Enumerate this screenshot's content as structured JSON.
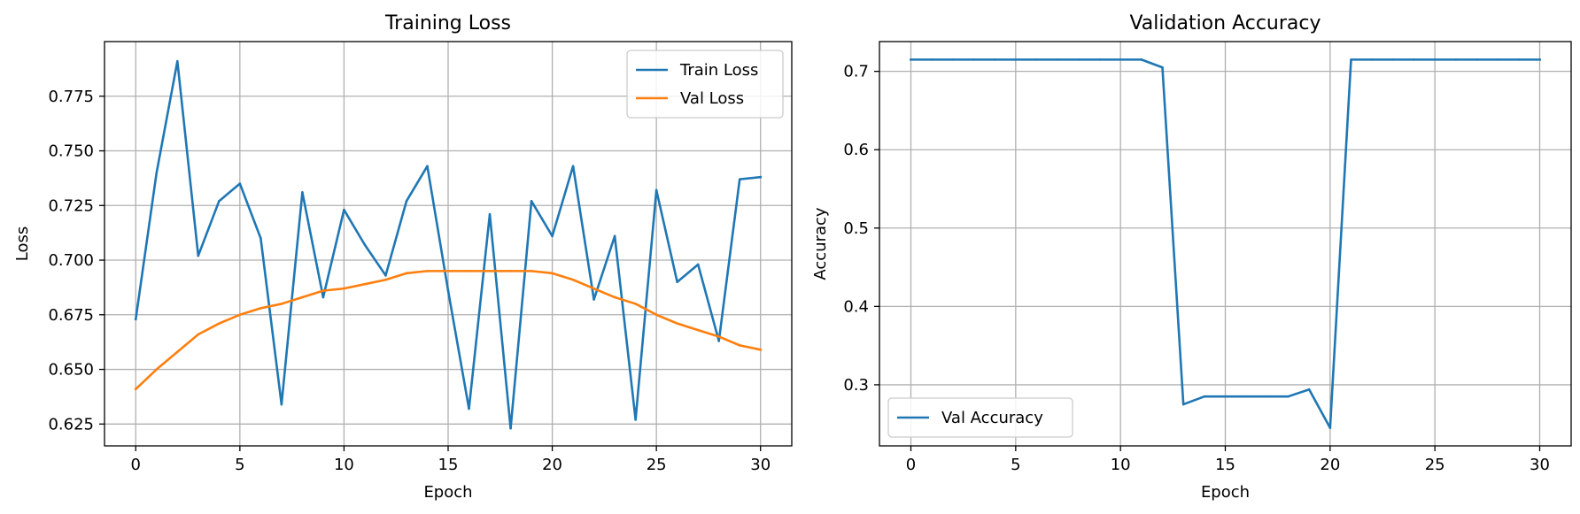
{
  "chart_data": [
    {
      "type": "line",
      "title": "Training Loss",
      "xlabel": "Epoch",
      "ylabel": "Loss",
      "xlim": [
        -1.5,
        31.5
      ],
      "ylim": [
        0.615,
        0.8
      ],
      "xticks": [
        0,
        5,
        10,
        15,
        20,
        25,
        30
      ],
      "yticks": [
        0.625,
        0.65,
        0.675,
        0.7,
        0.725,
        0.75,
        0.775
      ],
      "ytick_labels": [
        "0.625",
        "0.650",
        "0.675",
        "0.700",
        "0.725",
        "0.750",
        "0.775"
      ],
      "grid": true,
      "legend": "upper right",
      "x": [
        0,
        1,
        2,
        3,
        4,
        5,
        6,
        7,
        8,
        9,
        10,
        11,
        12,
        13,
        14,
        15,
        16,
        17,
        18,
        19,
        20,
        21,
        22,
        23,
        24,
        25,
        26,
        27,
        28,
        29,
        30
      ],
      "series": [
        {
          "name": "Train Loss",
          "color": "#1f77b4",
          "values": [
            0.673,
            0.74,
            0.791,
            0.702,
            0.727,
            0.735,
            0.71,
            0.634,
            0.731,
            0.683,
            0.723,
            0.707,
            0.693,
            0.727,
            0.743,
            0.686,
            0.632,
            0.721,
            0.623,
            0.727,
            0.711,
            0.743,
            0.682,
            0.711,
            0.627,
            0.732,
            0.69,
            0.698,
            0.663,
            0.737,
            0.738
          ]
        },
        {
          "name": "Val Loss",
          "color": "#ff7f0e",
          "values": [
            0.641,
            0.65,
            0.658,
            0.666,
            0.671,
            0.675,
            0.678,
            0.68,
            0.683,
            0.686,
            0.687,
            0.689,
            0.691,
            0.694,
            0.695,
            0.695,
            0.695,
            0.695,
            0.695,
            0.695,
            0.694,
            0.691,
            0.687,
            0.683,
            0.68,
            0.675,
            0.671,
            0.668,
            0.665,
            0.661,
            0.659
          ]
        }
      ]
    },
    {
      "type": "line",
      "title": "Validation Accuracy",
      "xlabel": "Epoch",
      "ylabel": "Accuracy",
      "xlim": [
        -1.5,
        31.5
      ],
      "ylim": [
        0.222,
        0.738
      ],
      "xticks": [
        0,
        5,
        10,
        15,
        20,
        25,
        30
      ],
      "yticks": [
        0.3,
        0.4,
        0.5,
        0.6,
        0.7
      ],
      "ytick_labels": [
        "0.3",
        "0.4",
        "0.5",
        "0.6",
        "0.7"
      ],
      "grid": true,
      "legend": "lower left",
      "x": [
        0,
        1,
        2,
        3,
        4,
        5,
        6,
        7,
        8,
        9,
        10,
        11,
        12,
        13,
        14,
        15,
        16,
        17,
        18,
        19,
        20,
        21,
        22,
        23,
        24,
        25,
        26,
        27,
        28,
        29,
        30
      ],
      "series": [
        {
          "name": "Val Accuracy",
          "color": "#1f77b4",
          "values": [
            0.715,
            0.715,
            0.715,
            0.715,
            0.715,
            0.715,
            0.715,
            0.715,
            0.715,
            0.715,
            0.715,
            0.715,
            0.705,
            0.275,
            0.285,
            0.285,
            0.285,
            0.285,
            0.285,
            0.294,
            0.245,
            0.715,
            0.715,
            0.715,
            0.715,
            0.715,
            0.715,
            0.715,
            0.715,
            0.715,
            0.715
          ]
        }
      ]
    }
  ]
}
